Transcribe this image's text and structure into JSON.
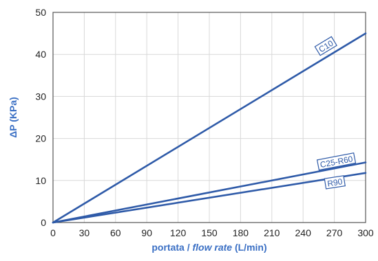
{
  "chart_data": {
    "type": "line",
    "xlabel_parts": [
      "portata / ",
      "flow rate",
      " (L/min)"
    ],
    "ylabel": "ΔP  (KPa)",
    "xlim": [
      0,
      300
    ],
    "ylim": [
      0,
      50
    ],
    "x_ticks": [
      0,
      30,
      60,
      90,
      120,
      150,
      180,
      210,
      240,
      270,
      300
    ],
    "y_ticks": [
      0,
      10,
      20,
      30,
      40,
      50
    ],
    "grid": true,
    "legend": "none",
    "series": [
      {
        "name": "C10",
        "x": [
          0,
          300
        ],
        "y": [
          0,
          45
        ]
      },
      {
        "name": "C25-R60",
        "x": [
          0,
          300
        ],
        "y": [
          0,
          14.3
        ]
      },
      {
        "name": "R90",
        "x": [
          0,
          300
        ],
        "y": [
          0,
          11.8
        ]
      }
    ],
    "colors": {
      "line": "#2e5aa8",
      "axis_label": "#3a6fc4",
      "grid": "#d8d8d8",
      "frame": "#555555"
    }
  }
}
